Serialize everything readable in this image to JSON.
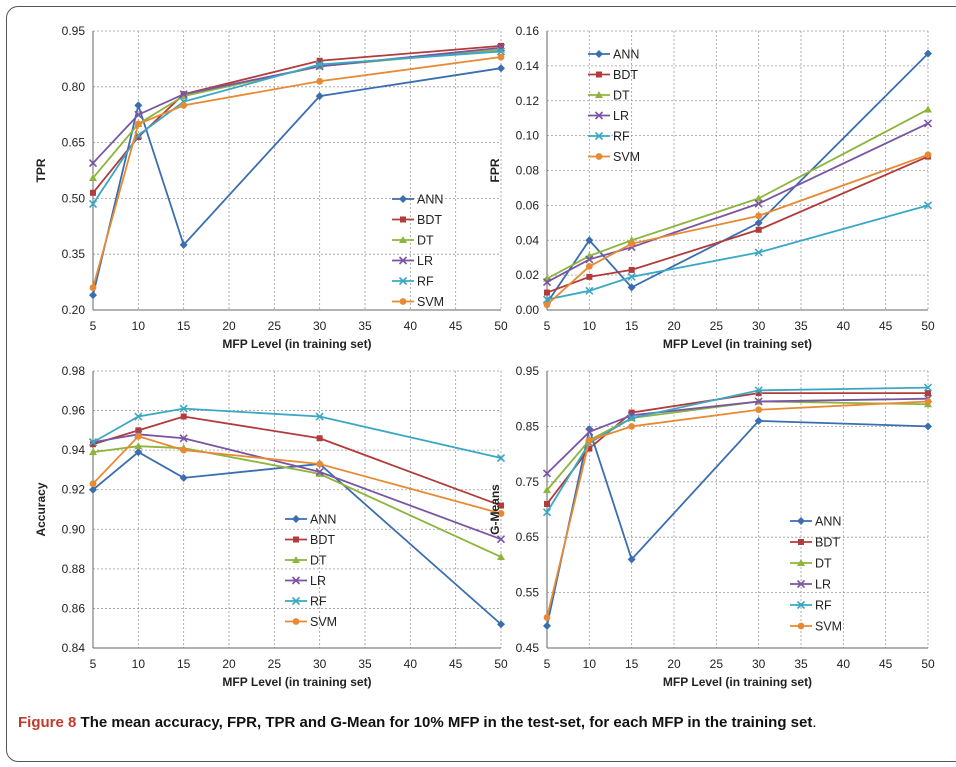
{
  "caption": {
    "label": "Figure 8",
    "text": "The mean accuracy, FPR, TPR and G-Mean for 10% MFP in the test-set, for each MFP in the training set",
    "end": "."
  },
  "colors": {
    "ANN": "#3a6eb0",
    "BDT": "#b23b3b",
    "DT": "#8db43c",
    "LR": "#7a55a3",
    "RF": "#3aa8c4",
    "SVM": "#e88a33"
  },
  "chart_data": [
    {
      "type": "line",
      "xlabel": "MFP Level (in training set)",
      "ylabel": "TPR",
      "x": [
        5,
        10,
        15,
        30,
        50
      ],
      "xlim": [
        5,
        50
      ],
      "xticks": [
        "5",
        "10",
        "15",
        "20",
        "25",
        "30",
        "35",
        "40",
        "45",
        "50"
      ],
      "ylim": [
        0.2,
        0.95
      ],
      "yticks": [
        "0.20",
        "0.35",
        "0.50",
        "0.65",
        "0.80",
        "0.95"
      ],
      "grid": true,
      "legend": "right",
      "series": [
        {
          "name": "ANN",
          "marker": "diamond",
          "values": [
            0.24,
            0.75,
            0.375,
            0.775,
            0.85
          ]
        },
        {
          "name": "BDT",
          "marker": "square",
          "values": [
            0.515,
            0.665,
            0.78,
            0.87,
            0.91
          ]
        },
        {
          "name": "DT",
          "marker": "triangle",
          "values": [
            0.555,
            0.7,
            0.775,
            0.855,
            0.9
          ]
        },
        {
          "name": "LR",
          "marker": "x",
          "values": [
            0.595,
            0.725,
            0.78,
            0.855,
            0.905
          ]
        },
        {
          "name": "RF",
          "marker": "x",
          "values": [
            0.485,
            0.67,
            0.76,
            0.86,
            0.895
          ]
        },
        {
          "name": "SVM",
          "marker": "circle",
          "values": [
            0.26,
            0.7,
            0.75,
            0.815,
            0.88
          ]
        }
      ]
    },
    {
      "type": "line",
      "xlabel": "MFP Level (in training set)",
      "ylabel": "FPR",
      "x": [
        5,
        10,
        15,
        30,
        50
      ],
      "xlim": [
        5,
        50
      ],
      "xticks": [
        "5",
        "10",
        "15",
        "20",
        "25",
        "30",
        "35",
        "40",
        "45",
        "50"
      ],
      "ylim": [
        0.0,
        0.16
      ],
      "yticks": [
        "0.00",
        "0.02",
        "0.04",
        "0.06",
        "0.08",
        "0.10",
        "0.12",
        "0.14",
        "0.16"
      ],
      "grid": true,
      "legend": "top-left",
      "series": [
        {
          "name": "ANN",
          "marker": "diamond",
          "values": [
            0.004,
            0.04,
            0.013,
            0.05,
            0.147
          ]
        },
        {
          "name": "BDT",
          "marker": "square",
          "values": [
            0.01,
            0.019,
            0.023,
            0.046,
            0.088
          ]
        },
        {
          "name": "DT",
          "marker": "triangle",
          "values": [
            0.018,
            0.031,
            0.04,
            0.064,
            0.115
          ]
        },
        {
          "name": "LR",
          "marker": "x",
          "values": [
            0.016,
            0.029,
            0.036,
            0.061,
            0.107
          ]
        },
        {
          "name": "RF",
          "marker": "x",
          "values": [
            0.006,
            0.011,
            0.019,
            0.033,
            0.06
          ]
        },
        {
          "name": "SVM",
          "marker": "circle",
          "values": [
            0.003,
            0.025,
            0.038,
            0.054,
            0.089
          ]
        }
      ]
    },
    {
      "type": "line",
      "xlabel": "MFP Level (in training set)",
      "ylabel": "Accuracy",
      "x": [
        5,
        10,
        15,
        30,
        50
      ],
      "xlim": [
        5,
        50
      ],
      "xticks": [
        "5",
        "10",
        "15",
        "20",
        "25",
        "30",
        "35",
        "40",
        "45",
        "50"
      ],
      "ylim": [
        0.84,
        0.98
      ],
      "yticks": [
        "0.84",
        "0.86",
        "0.88",
        "0.90",
        "0.92",
        "0.94",
        "0.96",
        "0.98"
      ],
      "grid": true,
      "legend": "right",
      "series": [
        {
          "name": "ANN",
          "marker": "diamond",
          "values": [
            0.92,
            0.939,
            0.926,
            0.933,
            0.852
          ]
        },
        {
          "name": "BDT",
          "marker": "square",
          "values": [
            0.943,
            0.95,
            0.957,
            0.946,
            0.912
          ]
        },
        {
          "name": "DT",
          "marker": "triangle",
          "values": [
            0.939,
            0.942,
            0.941,
            0.928,
            0.886
          ]
        },
        {
          "name": "LR",
          "marker": "x",
          "values": [
            0.944,
            0.948,
            0.946,
            0.929,
            0.895
          ]
        },
        {
          "name": "RF",
          "marker": "x",
          "values": [
            0.944,
            0.957,
            0.961,
            0.957,
            0.936
          ]
        },
        {
          "name": "SVM",
          "marker": "circle",
          "values": [
            0.923,
            0.947,
            0.94,
            0.933,
            0.908
          ]
        }
      ]
    },
    {
      "type": "line",
      "xlabel": "MFP Level (in training set)",
      "ylabel": "G-Means",
      "x": [
        5,
        10,
        15,
        30,
        50
      ],
      "xlim": [
        5,
        50
      ],
      "xticks": [
        "5",
        "10",
        "15",
        "20",
        "25",
        "30",
        "35",
        "40",
        "45",
        "50"
      ],
      "ylim": [
        0.45,
        0.95
      ],
      "yticks": [
        "0.45",
        "0.55",
        "0.65",
        "0.75",
        "0.85",
        "0.95"
      ],
      "grid": true,
      "legend": "right",
      "series": [
        {
          "name": "ANN",
          "marker": "diamond",
          "values": [
            0.49,
            0.845,
            0.61,
            0.86,
            0.85
          ]
        },
        {
          "name": "BDT",
          "marker": "square",
          "values": [
            0.71,
            0.81,
            0.875,
            0.91,
            0.91
          ]
        },
        {
          "name": "DT",
          "marker": "triangle",
          "values": [
            0.735,
            0.825,
            0.865,
            0.895,
            0.89
          ]
        },
        {
          "name": "LR",
          "marker": "x",
          "values": [
            0.765,
            0.84,
            0.87,
            0.895,
            0.9
          ]
        },
        {
          "name": "RF",
          "marker": "x",
          "values": [
            0.695,
            0.82,
            0.865,
            0.915,
            0.92
          ]
        },
        {
          "name": "SVM",
          "marker": "circle",
          "values": [
            0.505,
            0.825,
            0.85,
            0.88,
            0.895
          ]
        }
      ]
    }
  ]
}
